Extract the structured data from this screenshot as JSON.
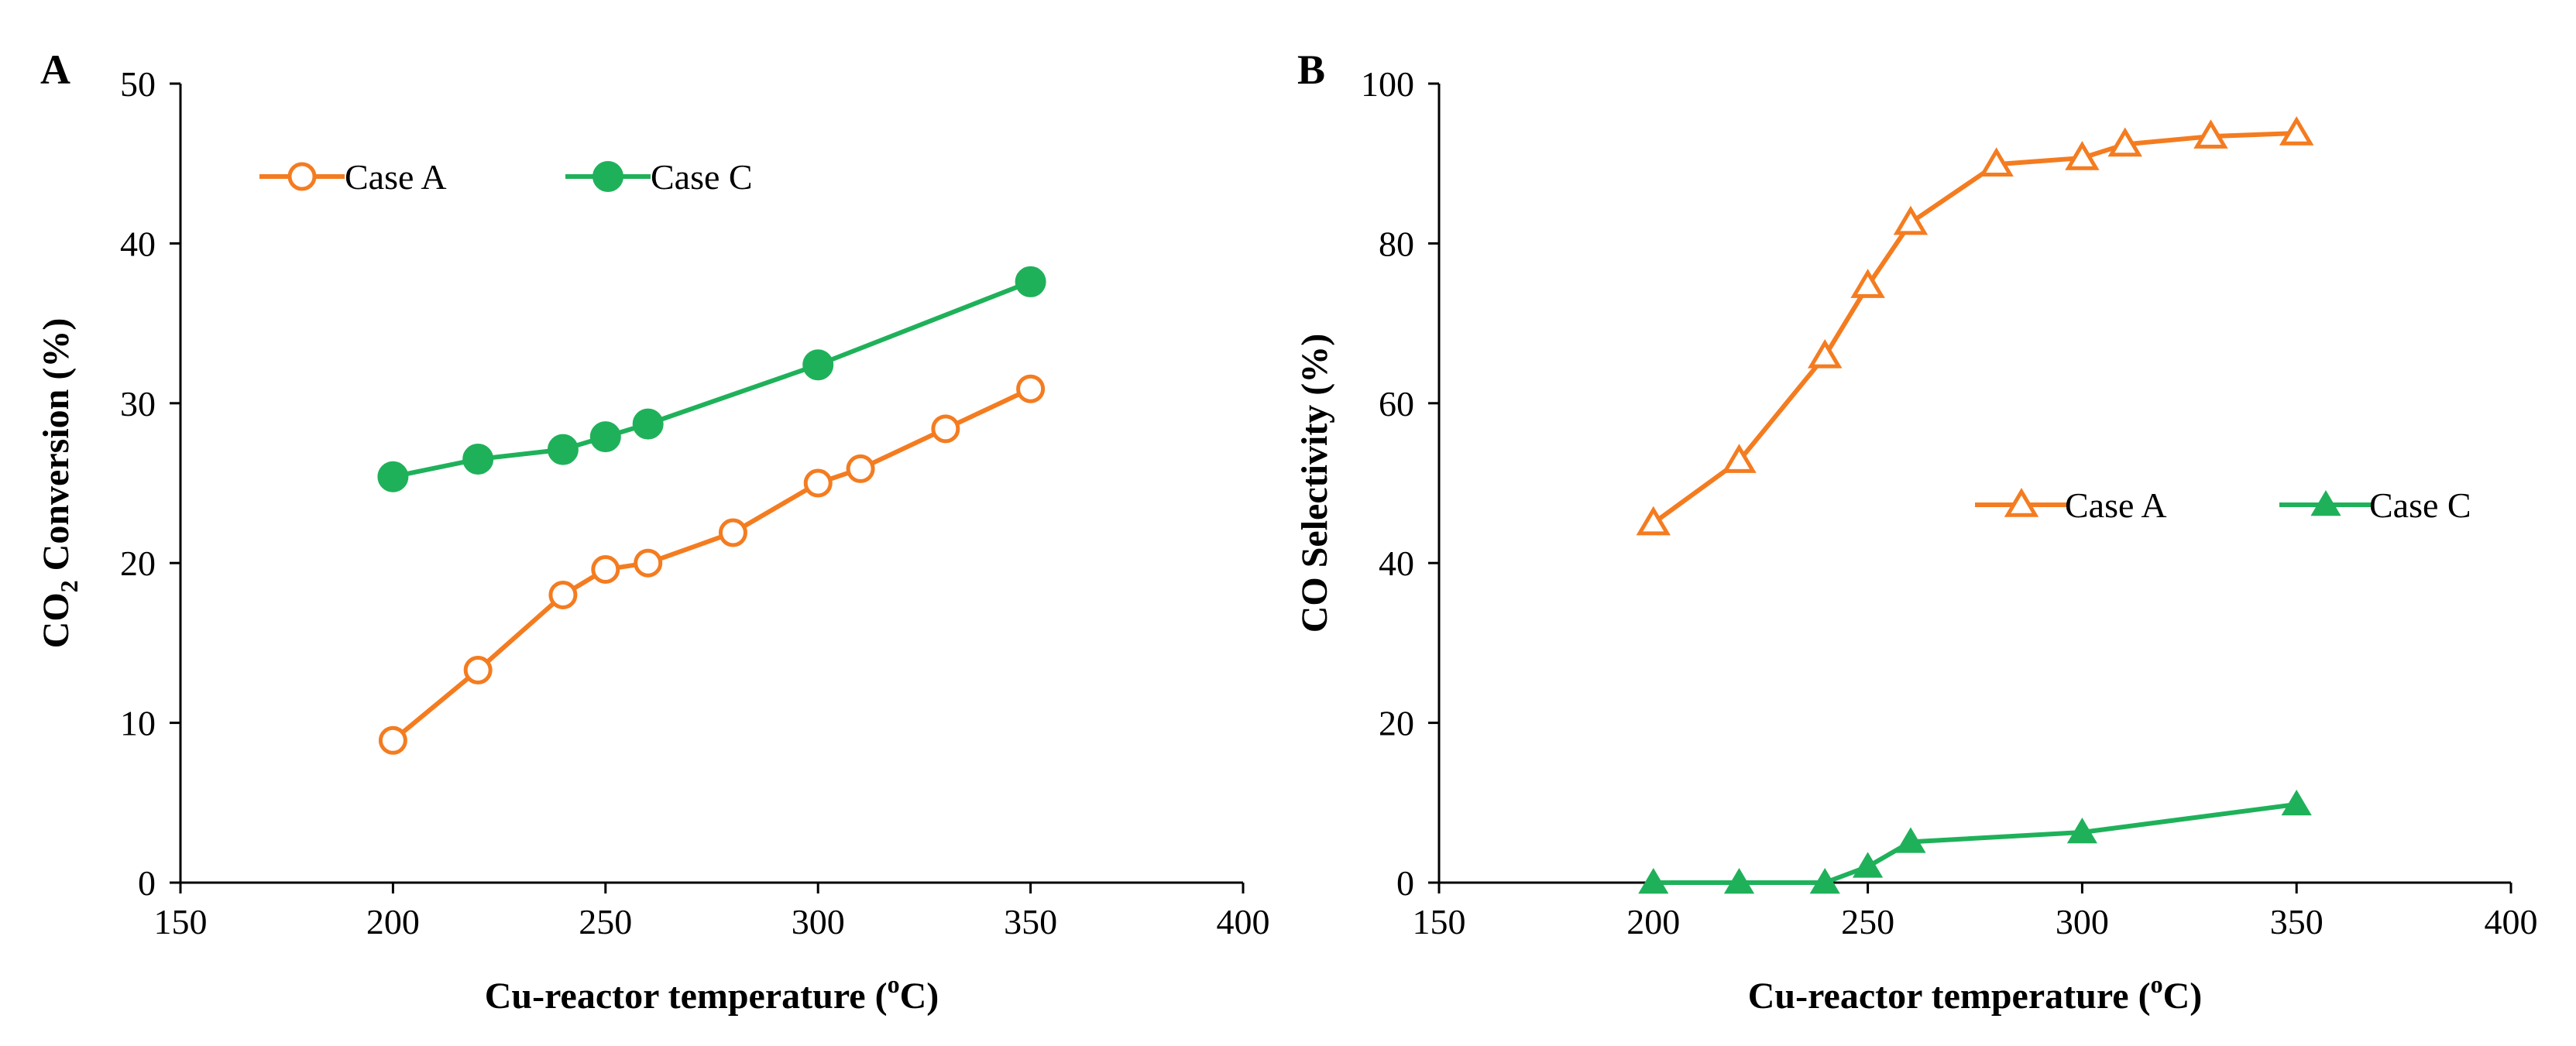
{
  "chart_data": [
    {
      "type": "line",
      "panel_label": "A",
      "title": "",
      "xlabel_main": "Cu-reactor temperature (",
      "xlabel_sup": "o",
      "xlabel_end": "C)",
      "ylabel_main": "CO",
      "ylabel_sub": "2",
      "ylabel_end": " Conversion (%)",
      "xlim": [
        150,
        400
      ],
      "ylim": [
        0,
        50
      ],
      "xticks": [
        150,
        200,
        250,
        300,
        350,
        400
      ],
      "yticks": [
        0,
        10,
        20,
        30,
        40,
        50
      ],
      "grid": false,
      "legend_position": "top-left",
      "series": [
        {
          "name": "Case A",
          "marker": "circle-open",
          "color": "#F47C20",
          "x": [
            200,
            220,
            240,
            250,
            260,
            280,
            300,
            310,
            330,
            350
          ],
          "values": [
            8.9,
            13.3,
            18.0,
            19.6,
            20.0,
            21.9,
            25.0,
            25.9,
            28.4,
            30.9
          ]
        },
        {
          "name": "Case C",
          "marker": "circle-filled",
          "color": "#1FB15A",
          "x": [
            200,
            220,
            240,
            250,
            260,
            300,
            350
          ],
          "values": [
            25.4,
            26.5,
            27.1,
            27.9,
            28.7,
            32.4,
            37.6
          ]
        }
      ]
    },
    {
      "type": "line",
      "panel_label": "B",
      "title": "",
      "xlabel_main": "Cu-reactor temperature (",
      "xlabel_sup": "o",
      "xlabel_end": "C)",
      "ylabel_main": "CO Selectivity (%)",
      "ylabel_sub": "",
      "ylabel_end": "",
      "xlim": [
        150,
        400
      ],
      "ylim": [
        0,
        100
      ],
      "xticks": [
        150,
        200,
        250,
        300,
        350,
        400
      ],
      "yticks": [
        0,
        20,
        40,
        60,
        80,
        100
      ],
      "grid": false,
      "legend_position": "center-right",
      "series": [
        {
          "name": "Case A",
          "marker": "triangle-open",
          "color": "#F47C20",
          "x": [
            200,
            220,
            240,
            250,
            260,
            280,
            300,
            310,
            330,
            350
          ],
          "values": [
            45.0,
            52.8,
            65.9,
            74.7,
            82.6,
            89.9,
            90.7,
            92.4,
            93.4,
            93.8
          ]
        },
        {
          "name": "Case C",
          "marker": "triangle-filled",
          "color": "#1FB15A",
          "x": [
            200,
            220,
            240,
            250,
            260,
            300,
            350
          ],
          "values": [
            0,
            0,
            0,
            2.0,
            5.1,
            6.3,
            9.8
          ]
        }
      ]
    }
  ]
}
